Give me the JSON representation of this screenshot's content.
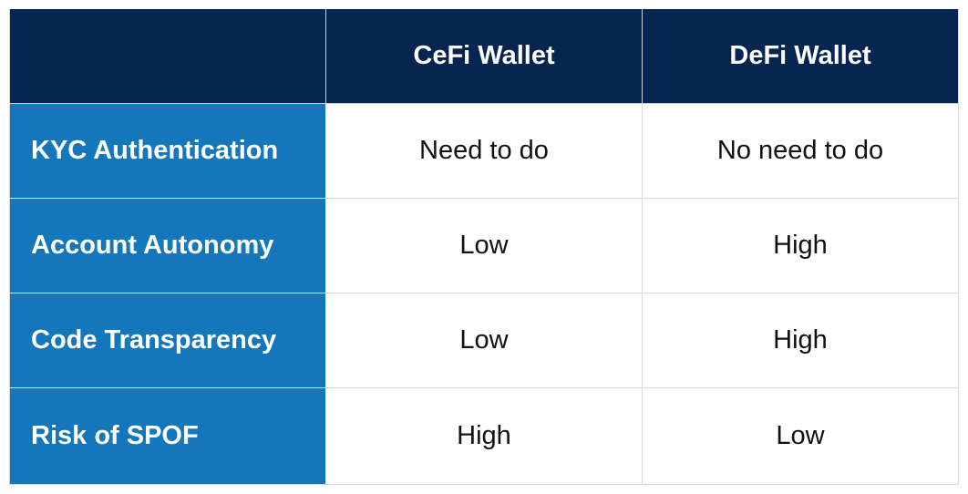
{
  "table": {
    "columns": [
      "",
      "CeFi  Wallet",
      "DeFi Wallet"
    ],
    "rows": [
      {
        "label": "KYC Authentication",
        "cefi": "Need to do",
        "defi": "No need to do"
      },
      {
        "label": "Account Autonomy",
        "cefi": "Low",
        "defi": "High"
      },
      {
        "label": "Code Transparency",
        "cefi": "Low",
        "defi": "High"
      },
      {
        "label": "Risk of SPOF",
        "cefi": "High",
        "defi": "Low"
      }
    ]
  },
  "colors": {
    "header_bg": "#062550",
    "row_label_bg": "#1577bb",
    "text_light": "#ffffff",
    "text_dark": "#111111"
  }
}
